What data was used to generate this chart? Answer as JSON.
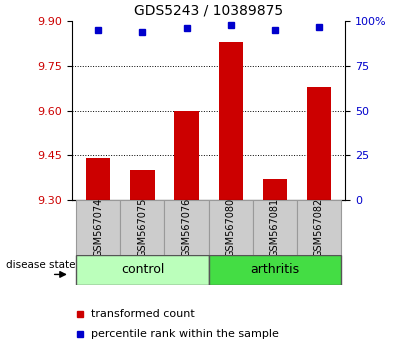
{
  "title": "GDS5243 / 10389875",
  "samples": [
    "GSM567074",
    "GSM567075",
    "GSM567076",
    "GSM567080",
    "GSM567081",
    "GSM567082"
  ],
  "bar_values": [
    9.44,
    9.4,
    9.6,
    9.83,
    9.37,
    9.68
  ],
  "percentile_values": [
    95,
    94,
    96,
    98,
    95,
    97
  ],
  "ylim_left": [
    9.3,
    9.9
  ],
  "ylim_right": [
    0,
    100
  ],
  "yticks_left": [
    9.3,
    9.45,
    9.6,
    9.75,
    9.9
  ],
  "yticks_right": [
    0,
    25,
    50,
    75,
    100
  ],
  "bar_color": "#cc0000",
  "dot_color": "#0000cc",
  "grid_lines": [
    9.45,
    9.6,
    9.75
  ],
  "groups": [
    {
      "label": "control",
      "indices": [
        0,
        1,
        2
      ],
      "color": "#bbffbb"
    },
    {
      "label": "arthritis",
      "indices": [
        3,
        4,
        5
      ],
      "color": "#44dd44"
    }
  ],
  "disease_state_label": "disease state",
  "legend_bar_label": "transformed count",
  "legend_dot_label": "percentile rank within the sample",
  "title_fontsize": 10,
  "tick_fontsize": 8,
  "sample_fontsize": 7,
  "group_fontsize": 9,
  "legend_fontsize": 8
}
